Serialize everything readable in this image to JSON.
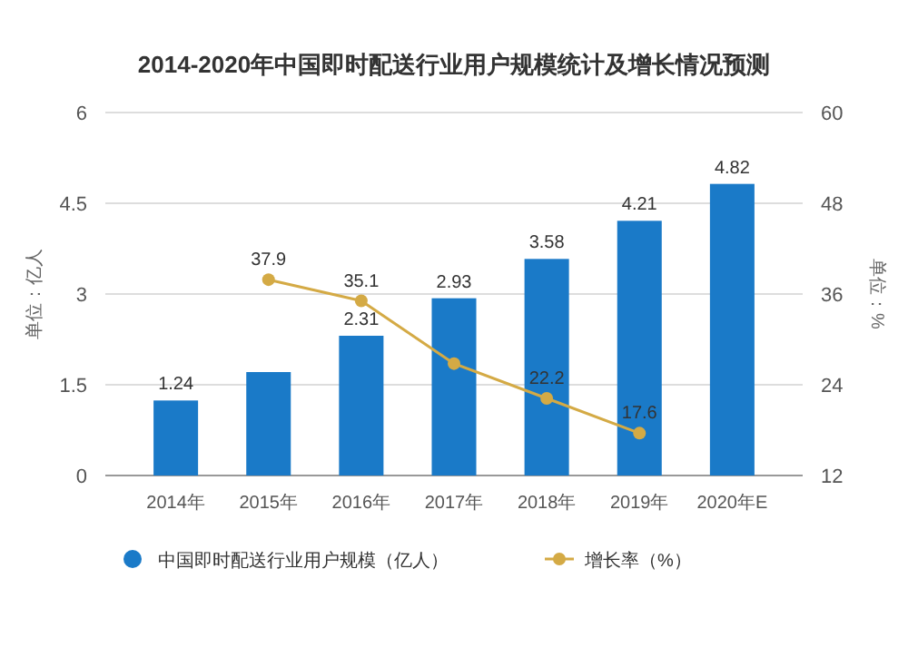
{
  "chart_data": {
    "type": "bar",
    "title": "2014-2020年中国即时配送行业用户规模统计及增长情况预测",
    "ylabel": "单位：亿人",
    "y2label": "单位：%",
    "categories": [
      "2014年",
      "2015年",
      "2016年",
      "2017年",
      "2018年",
      "2019年",
      "2020年E"
    ],
    "series": [
      {
        "name": "中国即时配送行业用户规模（亿人）",
        "color": "#1a7ac8",
        "values": [
          1.24,
          1.71,
          2.31,
          2.93,
          3.58,
          4.21,
          4.82
        ],
        "value_labels": [
          "1.24",
          null,
          "2.31",
          "2.93",
          "3.58",
          "4.21",
          "4.82"
        ]
      },
      {
        "name": "增长率（%）",
        "type": "line",
        "axis": "y2",
        "color": "#d4aa45",
        "marker": "circle",
        "values": [
          null,
          37.9,
          35.1,
          26.8,
          22.2,
          17.6,
          null
        ],
        "value_labels": [
          null,
          "37.9",
          "35.1",
          null,
          "22.2",
          "17.6",
          null
        ]
      }
    ],
    "ylim": [
      0,
      6
    ],
    "yticks": [
      0,
      1.5,
      3,
      4.5,
      6
    ],
    "y2lim": [
      12,
      60
    ],
    "y2ticks": [
      12,
      24,
      36,
      48,
      60
    ],
    "grid": "y",
    "legend": "bottom"
  }
}
